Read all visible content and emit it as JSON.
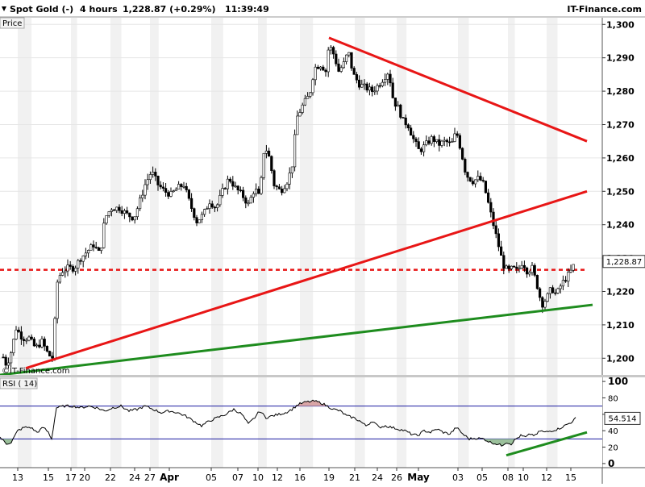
{
  "header": {
    "instrument": "Spot Gold (-)",
    "interval": "4 hours",
    "last": "1,228.87 (+0.29%)",
    "time": "11:39:49",
    "brand": "IT-Finance.com"
  },
  "price_panel": {
    "label": "Price",
    "watermark": "©IT-Finance.com",
    "last_price_label": "1,228.87"
  },
  "rsi_panel": {
    "label": "RSI ( 14)",
    "value_label": "54.514"
  },
  "colors": {
    "up": "#ffffff",
    "down": "#000000",
    "resistance": "#e81616",
    "support": "#1e8c1e",
    "rsi_band": "#1a1aa0",
    "overbought_fill": "#d9a5a5",
    "oversold_fill": "#9bc09b"
  },
  "chart_data": [
    {
      "type": "candlestick",
      "series_name": "Spot Gold (-)",
      "interval": "4 hours",
      "y_axis": {
        "ylim": [
          1195,
          1302
        ],
        "ticks": [
          1200,
          1210,
          1220,
          1230,
          1240,
          1250,
          1260,
          1270,
          1280,
          1290,
          1300
        ],
        "tick_labels": [
          "1,200",
          "1,210",
          "1,220",
          "1,230",
          "1,240",
          "1,250",
          "1,260",
          "1,270",
          "1,280",
          "1,290",
          "1,300"
        ]
      },
      "x_axis": {
        "tick_labels": [
          "13",
          "15",
          "17",
          "20",
          "22",
          "24",
          "27",
          "Apr",
          "05",
          "07",
          "10",
          "12",
          "16",
          "19",
          "21",
          "24",
          "26",
          "May",
          "03",
          "05",
          "08",
          "10",
          "12",
          "15"
        ],
        "bold_labels": [
          "Apr",
          "May"
        ]
      },
      "close_path": [
        [
          0,
          1205
        ],
        [
          6,
          1198
        ],
        [
          12,
          1200
        ],
        [
          20,
          1209
        ],
        [
          28,
          1206
        ],
        [
          36,
          1206
        ],
        [
          44,
          1203
        ],
        [
          52,
          1205
        ],
        [
          60,
          1201
        ],
        [
          66,
          1200
        ],
        [
          70,
          1222
        ],
        [
          76,
          1226
        ],
        [
          84,
          1227
        ],
        [
          92,
          1227
        ],
        [
          100,
          1230
        ],
        [
          108,
          1232
        ],
        [
          116,
          1234
        ],
        [
          124,
          1231
        ],
        [
          130,
          1242
        ],
        [
          138,
          1245
        ],
        [
          148,
          1245
        ],
        [
          158,
          1243
        ],
        [
          166,
          1242
        ],
        [
          172,
          1246
        ],
        [
          180,
          1252
        ],
        [
          188,
          1256
        ],
        [
          196,
          1252
        ],
        [
          204,
          1250
        ],
        [
          212,
          1249
        ],
        [
          220,
          1251
        ],
        [
          228,
          1252
        ],
        [
          236,
          1246
        ],
        [
          244,
          1241
        ],
        [
          252,
          1243
        ],
        [
          260,
          1247
        ],
        [
          268,
          1245
        ],
        [
          276,
          1250
        ],
        [
          284,
          1254
        ],
        [
          292,
          1251
        ],
        [
          300,
          1249
        ],
        [
          308,
          1246
        ],
        [
          316,
          1251
        ],
        [
          322,
          1248
        ],
        [
          328,
          1264
        ],
        [
          334,
          1260
        ],
        [
          340,
          1252
        ],
        [
          348,
          1250
        ],
        [
          356,
          1253
        ],
        [
          362,
          1257
        ],
        [
          368,
          1272
        ],
        [
          376,
          1276
        ],
        [
          384,
          1279
        ],
        [
          390,
          1287
        ],
        [
          398,
          1288
        ],
        [
          404,
          1286
        ],
        [
          408,
          1294
        ],
        [
          414,
          1291
        ],
        [
          420,
          1286
        ],
        [
          426,
          1288
        ],
        [
          432,
          1292
        ],
        [
          438,
          1285
        ],
        [
          446,
          1282
        ],
        [
          454,
          1281
        ],
        [
          462,
          1280
        ],
        [
          470,
          1282
        ],
        [
          476,
          1284
        ],
        [
          482,
          1286
        ],
        [
          488,
          1277
        ],
        [
          494,
          1275
        ],
        [
          500,
          1271
        ],
        [
          506,
          1270
        ],
        [
          512,
          1266
        ],
        [
          520,
          1262
        ],
        [
          528,
          1264
        ],
        [
          536,
          1266
        ],
        [
          544,
          1264
        ],
        [
          552,
          1265
        ],
        [
          560,
          1264
        ],
        [
          566,
          1268
        ],
        [
          572,
          1262
        ],
        [
          578,
          1255
        ],
        [
          586,
          1253
        ],
        [
          594,
          1254
        ],
        [
          600,
          1252
        ],
        [
          606,
          1246
        ],
        [
          612,
          1240
        ],
        [
          618,
          1234
        ],
        [
          624,
          1228
        ],
        [
          630,
          1226
        ],
        [
          636,
          1227
        ],
        [
          642,
          1226
        ],
        [
          648,
          1229
        ],
        [
          654,
          1226
        ],
        [
          660,
          1227
        ],
        [
          666,
          1222
        ],
        [
          672,
          1216
        ],
        [
          678,
          1218
        ],
        [
          684,
          1221
        ],
        [
          690,
          1219
        ],
        [
          696,
          1222
        ],
        [
          702,
          1224
        ],
        [
          708,
          1226
        ],
        [
          714,
          1229
        ]
      ],
      "horizontal_lines": [
        {
          "y": 1226.5,
          "style": "dashed",
          "color": "#e81616"
        }
      ],
      "trend_lines": [
        {
          "role": "resistance",
          "color": "#e81616",
          "from": [
            408,
            1296
          ],
          "to": [
            728,
            1265
          ]
        },
        {
          "role": "wedge-support-broken",
          "color": "#e81616",
          "from": [
            32,
            1197
          ],
          "to": [
            728,
            1250
          ]
        },
        {
          "role": "long-term-support",
          "color": "#1e8c1e",
          "from": [
            0,
            1195
          ],
          "to": [
            735,
            1216
          ]
        }
      ],
      "last_price": 1228.87
    },
    {
      "type": "line",
      "series_name": "RSI ( 14)",
      "ylim": [
        -5,
        105
      ],
      "ticks": [
        0,
        20,
        40,
        60,
        80,
        100
      ],
      "bands": [
        30,
        70
      ],
      "values_path": [
        [
          0,
          32
        ],
        [
          8,
          24
        ],
        [
          14,
          26
        ],
        [
          22,
          40
        ],
        [
          30,
          44
        ],
        [
          38,
          44
        ],
        [
          46,
          38
        ],
        [
          54,
          44
        ],
        [
          60,
          38
        ],
        [
          64,
          30
        ],
        [
          70,
          68
        ],
        [
          80,
          70
        ],
        [
          90,
          70
        ],
        [
          100,
          68
        ],
        [
          110,
          70
        ],
        [
          120,
          68
        ],
        [
          130,
          64
        ],
        [
          140,
          68
        ],
        [
          150,
          70
        ],
        [
          160,
          64
        ],
        [
          170,
          66
        ],
        [
          180,
          70
        ],
        [
          190,
          66
        ],
        [
          200,
          62
        ],
        [
          210,
          64
        ],
        [
          220,
          62
        ],
        [
          230,
          58
        ],
        [
          240,
          52
        ],
        [
          250,
          46
        ],
        [
          260,
          52
        ],
        [
          270,
          56
        ],
        [
          280,
          60
        ],
        [
          290,
          66
        ],
        [
          300,
          60
        ],
        [
          308,
          48
        ],
        [
          316,
          56
        ],
        [
          322,
          64
        ],
        [
          330,
          56
        ],
        [
          338,
          58
        ],
        [
          346,
          60
        ],
        [
          354,
          62
        ],
        [
          362,
          66
        ],
        [
          370,
          72
        ],
        [
          380,
          75
        ],
        [
          390,
          76
        ],
        [
          398,
          74
        ],
        [
          406,
          70
        ],
        [
          414,
          66
        ],
        [
          422,
          64
        ],
        [
          430,
          58
        ],
        [
          438,
          56
        ],
        [
          446,
          52
        ],
        [
          454,
          46
        ],
        [
          462,
          52
        ],
        [
          470,
          44
        ],
        [
          478,
          46
        ],
        [
          486,
          44
        ],
        [
          494,
          42
        ],
        [
          502,
          40
        ],
        [
          510,
          36
        ],
        [
          518,
          34
        ],
        [
          526,
          40
        ],
        [
          534,
          38
        ],
        [
          542,
          42
        ],
        [
          550,
          38
        ],
        [
          558,
          36
        ],
        [
          566,
          44
        ],
        [
          574,
          36
        ],
        [
          582,
          30
        ],
        [
          590,
          31
        ],
        [
          600,
          30
        ],
        [
          608,
          26
        ],
        [
          616,
          24
        ],
        [
          622,
          22
        ],
        [
          628,
          26
        ],
        [
          634,
          24
        ],
        [
          640,
          30
        ],
        [
          646,
          34
        ],
        [
          652,
          32
        ],
        [
          658,
          36
        ],
        [
          664,
          34
        ],
        [
          670,
          40
        ],
        [
          676,
          38
        ],
        [
          684,
          40
        ],
        [
          692,
          42
        ],
        [
          700,
          46
        ],
        [
          708,
          50
        ],
        [
          714,
          55
        ]
      ],
      "current_value": 54.514,
      "trend_line": {
        "color": "#1e8c1e",
        "from": [
          628,
          10
        ],
        "to": [
          728,
          38
        ]
      }
    }
  ]
}
